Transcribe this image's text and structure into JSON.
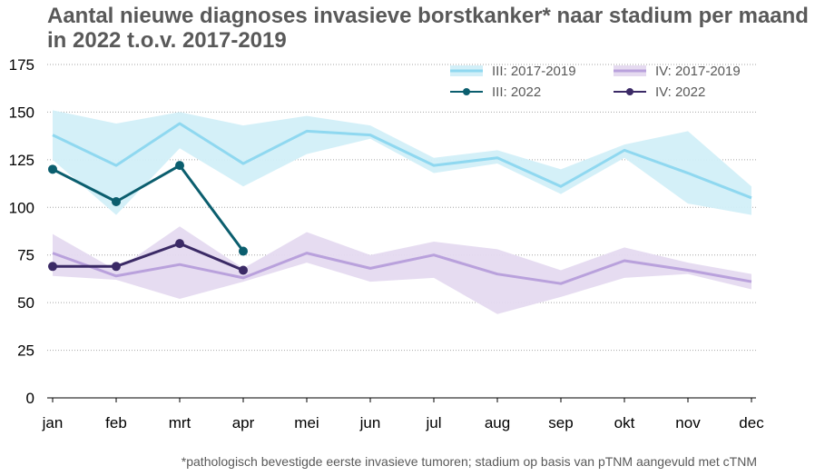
{
  "chart_data": {
    "type": "line",
    "title_line1": "Aantal nieuwe diagnoses invasieve borstkanker* naar stadium per maand",
    "title_line2": "in 2022 t.o.v. 2017-2019",
    "footnote": "*pathologisch bevestigde eerste invasieve tumoren; stadium op basis van pTNM aangevuld met cTNM",
    "xlabel": "",
    "ylabel": "",
    "categories": [
      "jan",
      "feb",
      "mrt",
      "apr",
      "mei",
      "jun",
      "jul",
      "aug",
      "sep",
      "okt",
      "nov",
      "dec"
    ],
    "ylim": [
      0,
      175
    ],
    "yticks": [
      0,
      25,
      50,
      75,
      100,
      125,
      150,
      175
    ],
    "grid": "horizontal-dotted",
    "legend_position": "top-right",
    "series": [
      {
        "name": "III: 2017-2019",
        "kind": "band",
        "color": "#8fd8f0",
        "band_color": "#d2eff8",
        "mean": [
          138,
          122,
          144,
          123,
          140,
          138,
          122,
          126,
          111,
          130,
          118,
          105
        ],
        "low": [
          125,
          96,
          131,
          111,
          128,
          136,
          118,
          123,
          107,
          126,
          102,
          96
        ],
        "high": [
          151,
          144,
          150,
          143,
          148,
          143,
          126,
          130,
          120,
          133,
          140,
          111
        ]
      },
      {
        "name": "IV: 2017-2019",
        "kind": "band",
        "color": "#b9a1dc",
        "band_color": "#e5daf0",
        "mean": [
          76,
          64,
          70,
          63,
          76,
          68,
          75,
          65,
          60,
          72,
          67,
          61
        ],
        "low": [
          64,
          62,
          52,
          61,
          71,
          61,
          63,
          44,
          53,
          63,
          65,
          57
        ],
        "high": [
          86,
          67,
          90,
          68,
          87,
          75,
          82,
          78,
          67,
          79,
          71,
          65
        ]
      },
      {
        "name": "III: 2022",
        "kind": "line-marker",
        "color": "#0b5e6e",
        "values": [
          120,
          103,
          122,
          77,
          null,
          null,
          null,
          null,
          null,
          null,
          null,
          null
        ]
      },
      {
        "name": "IV: 2022",
        "kind": "line-marker",
        "color": "#3b2a66",
        "values": [
          69,
          69,
          81,
          67,
          null,
          null,
          null,
          null,
          null,
          null,
          null,
          null
        ]
      }
    ]
  }
}
